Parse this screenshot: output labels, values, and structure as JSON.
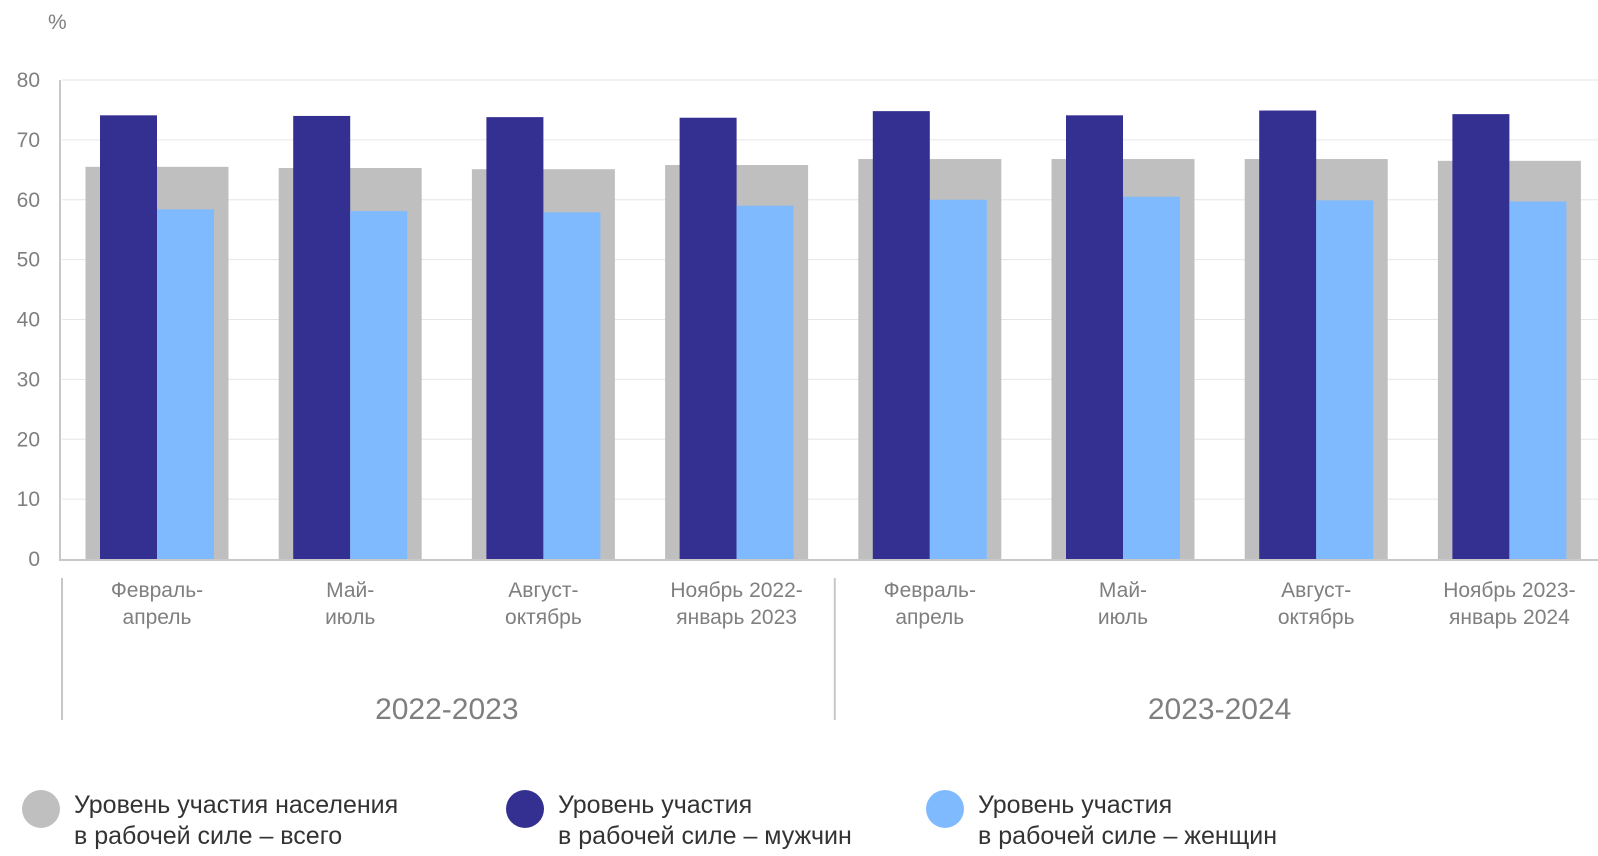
{
  "chart_data": {
    "type": "bar",
    "unit_label": "%",
    "ylim": [
      0,
      80
    ],
    "yticks": [
      0,
      10,
      20,
      30,
      40,
      50,
      60,
      70,
      80
    ],
    "grid": true,
    "categories": [
      [
        "Февраль-",
        "апрель"
      ],
      [
        "Май-",
        "июль"
      ],
      [
        "Август-",
        "октябрь"
      ],
      [
        "Ноябрь 2022-",
        "январь 2023"
      ],
      [
        "Февраль-",
        "апрель"
      ],
      [
        "Май-",
        "июль"
      ],
      [
        "Август-",
        "октябрь"
      ],
      [
        "Ноябрь 2023-",
        "январь 2024"
      ]
    ],
    "groups": [
      {
        "label": "2022-2023",
        "count": 4
      },
      {
        "label": "2023-2024",
        "count": 4
      }
    ],
    "series": [
      {
        "name": "Уровень участия населения в рабочей силе – всего",
        "values": [
          65.5,
          65.3,
          65.1,
          65.8,
          66.8,
          66.8,
          66.8,
          66.5
        ],
        "color": "#bfbfbf"
      },
      {
        "name": "Уровень участия в рабочей силе – мужчин",
        "values": [
          74.1,
          74.0,
          73.8,
          73.7,
          74.8,
          74.1,
          74.9,
          74.3
        ],
        "color": "#343091"
      },
      {
        "name": "Уровень участия в рабочей силе – женщин",
        "values": [
          58.4,
          58.1,
          57.9,
          59.0,
          60.0,
          60.5,
          59.9,
          59.7
        ],
        "color": "#7fbaff"
      }
    ],
    "legend_position": "bottom"
  },
  "legend": [
    {
      "line1": "Уровень участия населения",
      "line2": "в рабочей силе – всего",
      "color": "#bfbfbf"
    },
    {
      "line1": "Уровень участия",
      "line2": "в рабочей силе – мужчин",
      "color": "#343091"
    },
    {
      "line1": "Уровень участия",
      "line2": "в рабочей силе – женщин",
      "color": "#7fbaff"
    }
  ]
}
